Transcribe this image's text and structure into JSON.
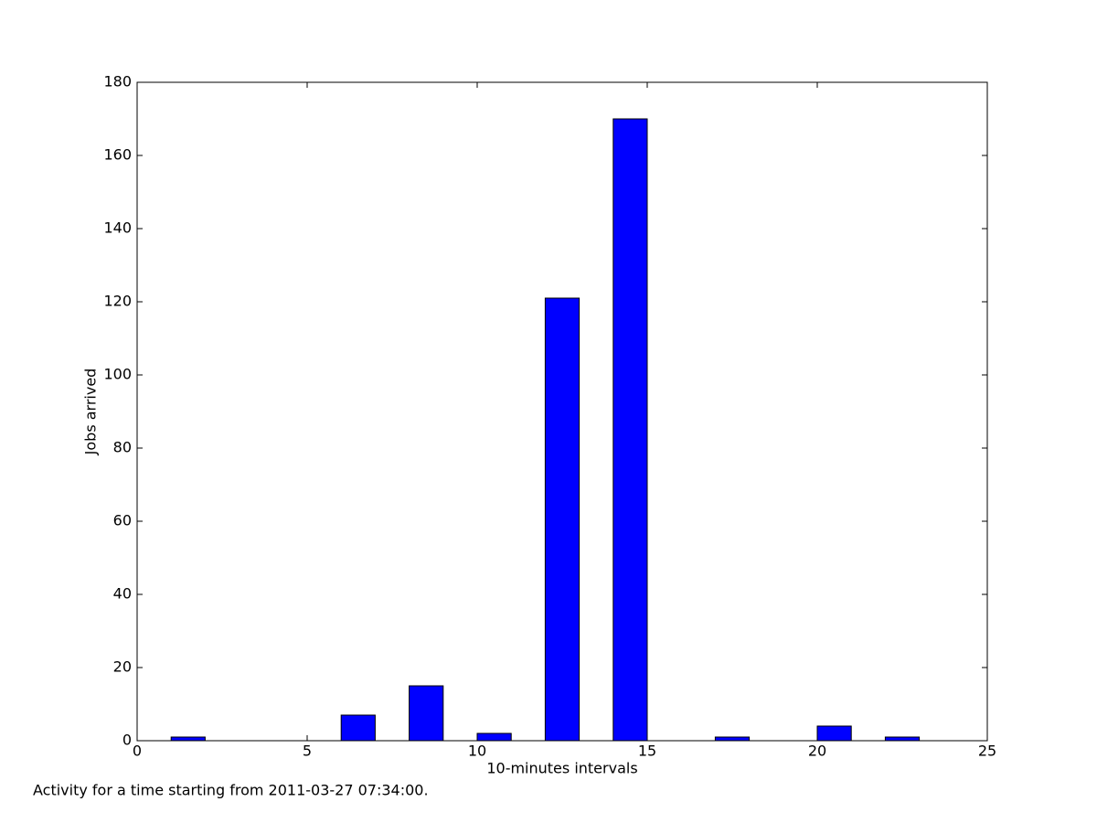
{
  "chart_data": {
    "type": "bar",
    "x": [
      1,
      3,
      4,
      6,
      8,
      10,
      12,
      14,
      16,
      17,
      19,
      20,
      22,
      23
    ],
    "values": [
      1,
      0,
      0,
      7,
      15,
      2,
      121,
      170,
      0,
      1,
      0,
      4,
      1,
      0
    ],
    "color": "#0000ff",
    "xlabel": "10-minutes intervals",
    "ylabel": "Jobs arrived",
    "caption": "Activity for a time starting from 2011-03-27 07:34:00.",
    "xlim": [
      0,
      25
    ],
    "xticks": [
      0,
      5,
      10,
      15,
      20,
      25
    ],
    "ylim": [
      0,
      180
    ],
    "yticks": [
      0,
      20,
      40,
      60,
      80,
      100,
      120,
      140,
      160,
      180
    ],
    "grid": false
  }
}
